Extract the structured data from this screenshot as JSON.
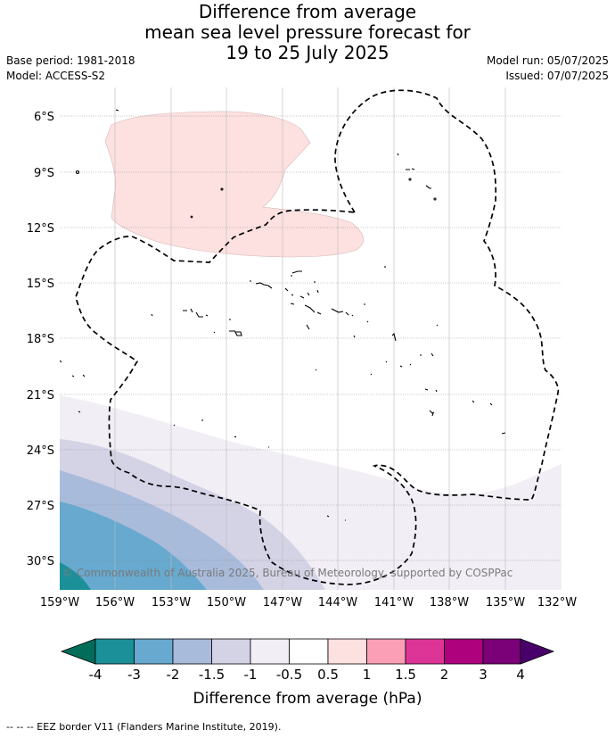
{
  "title": {
    "line1": "Difference from average",
    "line2": "mean sea level pressure forecast for",
    "line3": "19 to 25 July 2025"
  },
  "meta": {
    "base_period": "Base period: 1981-2018",
    "model": "Model: ACCESS-S2",
    "model_run": "Model run: 05/07/2025",
    "issued": "Issued: 07/07/2025"
  },
  "map": {
    "lat_labels": [
      "6°S",
      "9°S",
      "12°S",
      "15°S",
      "18°S",
      "21°S",
      "24°S",
      "27°S",
      "30°S"
    ],
    "lon_labels": [
      "159°W",
      "156°W",
      "153°W",
      "150°W",
      "147°W",
      "144°W",
      "141°W",
      "138°W",
      "135°W",
      "132°W"
    ],
    "copyright": "© Commonwealth of Australia 2025, Bureau of Meteorology, supported by COSPPac",
    "colors": {
      "pos_0_5_1": "#fde0e0",
      "neg_0_5_1": "#f2eef5",
      "neg_1_1_5": "#d4d3e6",
      "neg_1_5_2": "#a8bbdb",
      "neg_2_3": "#67a9cf",
      "neg_3_4": "#1c9099",
      "neg_lt_4": "#016c59"
    }
  },
  "colorbar": {
    "labels": [
      "-4",
      "-3",
      "-2",
      "-1.5",
      "-1",
      "-0.5",
      "0.5",
      "1",
      "1.5",
      "2",
      "3",
      "4"
    ],
    "colors": [
      "#016c59",
      "#1c9099",
      "#67a9cf",
      "#a8bbdb",
      "#d4d3e6",
      "#f2eef5",
      "#ffffff",
      "#fde0e0",
      "#fa9fb5",
      "#dd3497",
      "#ae017e",
      "#7a0177",
      "#49006a"
    ],
    "title": "Difference from average (hPa)"
  },
  "footer": "-- -- -- EEZ border V11 (Flanders Marine Institute, 2019)."
}
